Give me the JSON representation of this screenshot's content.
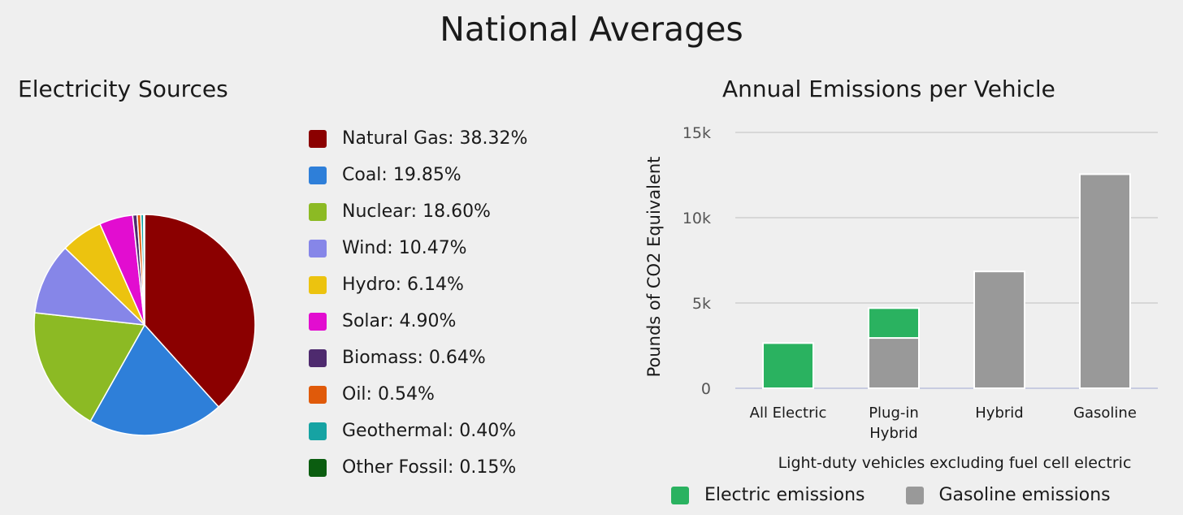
{
  "page": {
    "title": "National Averages"
  },
  "chart_data": [
    {
      "type": "pie",
      "title": "Electricity Sources",
      "slices": [
        {
          "name": "Natural Gas",
          "label": "38.32%",
          "value": 38.32,
          "color": "#8b0000"
        },
        {
          "name": "Coal",
          "label": "19.85%",
          "value": 19.85,
          "color": "#2e7fd9"
        },
        {
          "name": "Nuclear",
          "label": "18.60%",
          "value": 18.6,
          "color": "#8cba24"
        },
        {
          "name": "Wind",
          "label": "10.47%",
          "value": 10.47,
          "color": "#8686e8"
        },
        {
          "name": "Hydro",
          "label": "6.14%",
          "value": 6.14,
          "color": "#ecc30f"
        },
        {
          "name": "Solar",
          "label": "4.90%",
          "value": 4.9,
          "color": "#e20dd0"
        },
        {
          "name": "Biomass",
          "label": "0.64%",
          "value": 0.64,
          "color": "#4e2a6e"
        },
        {
          "name": "Oil",
          "label": "0.54%",
          "value": 0.54,
          "color": "#e05a0a"
        },
        {
          "name": "Geothermal",
          "label": "0.40%",
          "value": 0.4,
          "color": "#16a3a3"
        },
        {
          "name": "Other Fossil",
          "label": "0.15%",
          "value": 0.15,
          "color": "#0b5d10"
        }
      ]
    },
    {
      "type": "bar",
      "stacked": true,
      "title": "Annual Emissions per Vehicle",
      "ylabel": "Pounds of CO2 Equivalent",
      "xlabel": "Light-duty vehicles excluding fuel cell electric",
      "ylim": [
        0,
        15000
      ],
      "yticks": [
        {
          "value": 0,
          "label": "0"
        },
        {
          "value": 5000,
          "label": "5k"
        },
        {
          "value": 10000,
          "label": "10k"
        },
        {
          "value": 15000,
          "label": "15k"
        }
      ],
      "grid": true,
      "categories": [
        [
          "All Electric"
        ],
        [
          "Plug-in",
          "Hybrid"
        ],
        [
          "Hybrid"
        ],
        [
          "Gasoline"
        ]
      ],
      "series": [
        {
          "name": "Gasoline emissions",
          "color": "#999999",
          "values": [
            0,
            2950,
            6850,
            12550
          ]
        },
        {
          "name": "Electric emissions",
          "color": "#2ab260",
          "values": [
            2650,
            1750,
            0,
            0
          ]
        }
      ],
      "legend_order": [
        "Electric emissions",
        "Gasoline emissions"
      ],
      "legend_position": "bottom"
    }
  ]
}
